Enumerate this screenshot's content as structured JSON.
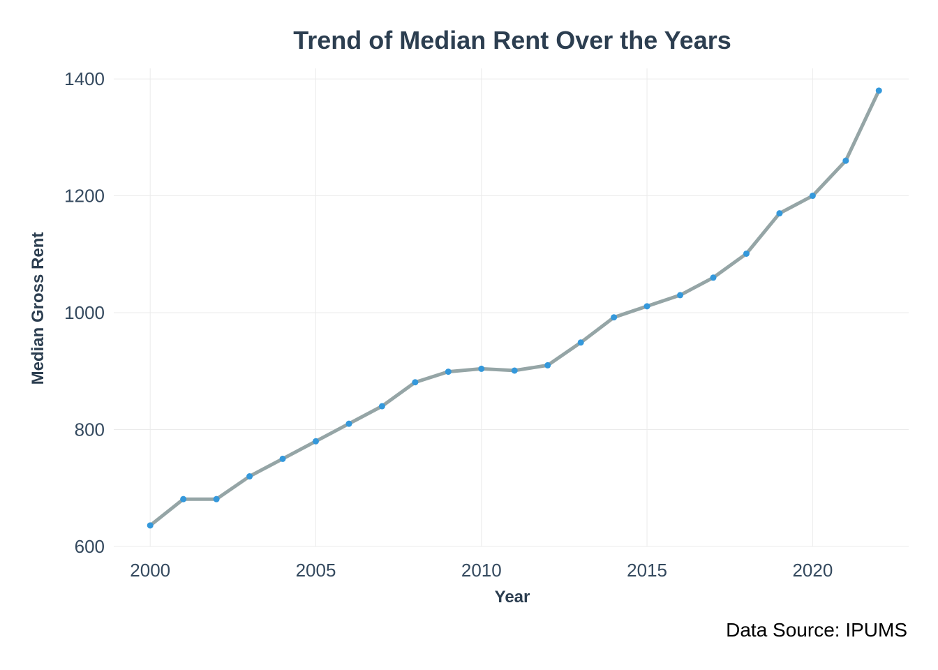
{
  "chart_data": {
    "type": "line",
    "title": "Trend of Median Rent Over the Years",
    "xlabel": "Year",
    "ylabel": "Median Gross Rent",
    "caption": "Data Source: IPUMS",
    "x": [
      2000,
      2001,
      2002,
      2003,
      2004,
      2005,
      2006,
      2007,
      2008,
      2009,
      2010,
      2011,
      2012,
      2013,
      2014,
      2015,
      2016,
      2017,
      2018,
      2019,
      2020,
      2021,
      2022
    ],
    "y": [
      636,
      681,
      681,
      720,
      750,
      780,
      810,
      840,
      881,
      899,
      904,
      901,
      910,
      949,
      992,
      1011,
      1030,
      1060,
      1101,
      1170,
      1200,
      1260,
      1380
    ],
    "xticks": [
      2000,
      2005,
      2010,
      2015,
      2020
    ],
    "yticks": [
      600,
      800,
      1000,
      1200,
      1400
    ],
    "xlim": [
      1998.9,
      2022.9
    ],
    "ylim": [
      600,
      1418
    ],
    "grid": true,
    "legend": "none",
    "colors": {
      "line": "#95a5a6",
      "point": "#3498db",
      "text": "#2c3e50",
      "grid": "#ebebeb"
    }
  }
}
